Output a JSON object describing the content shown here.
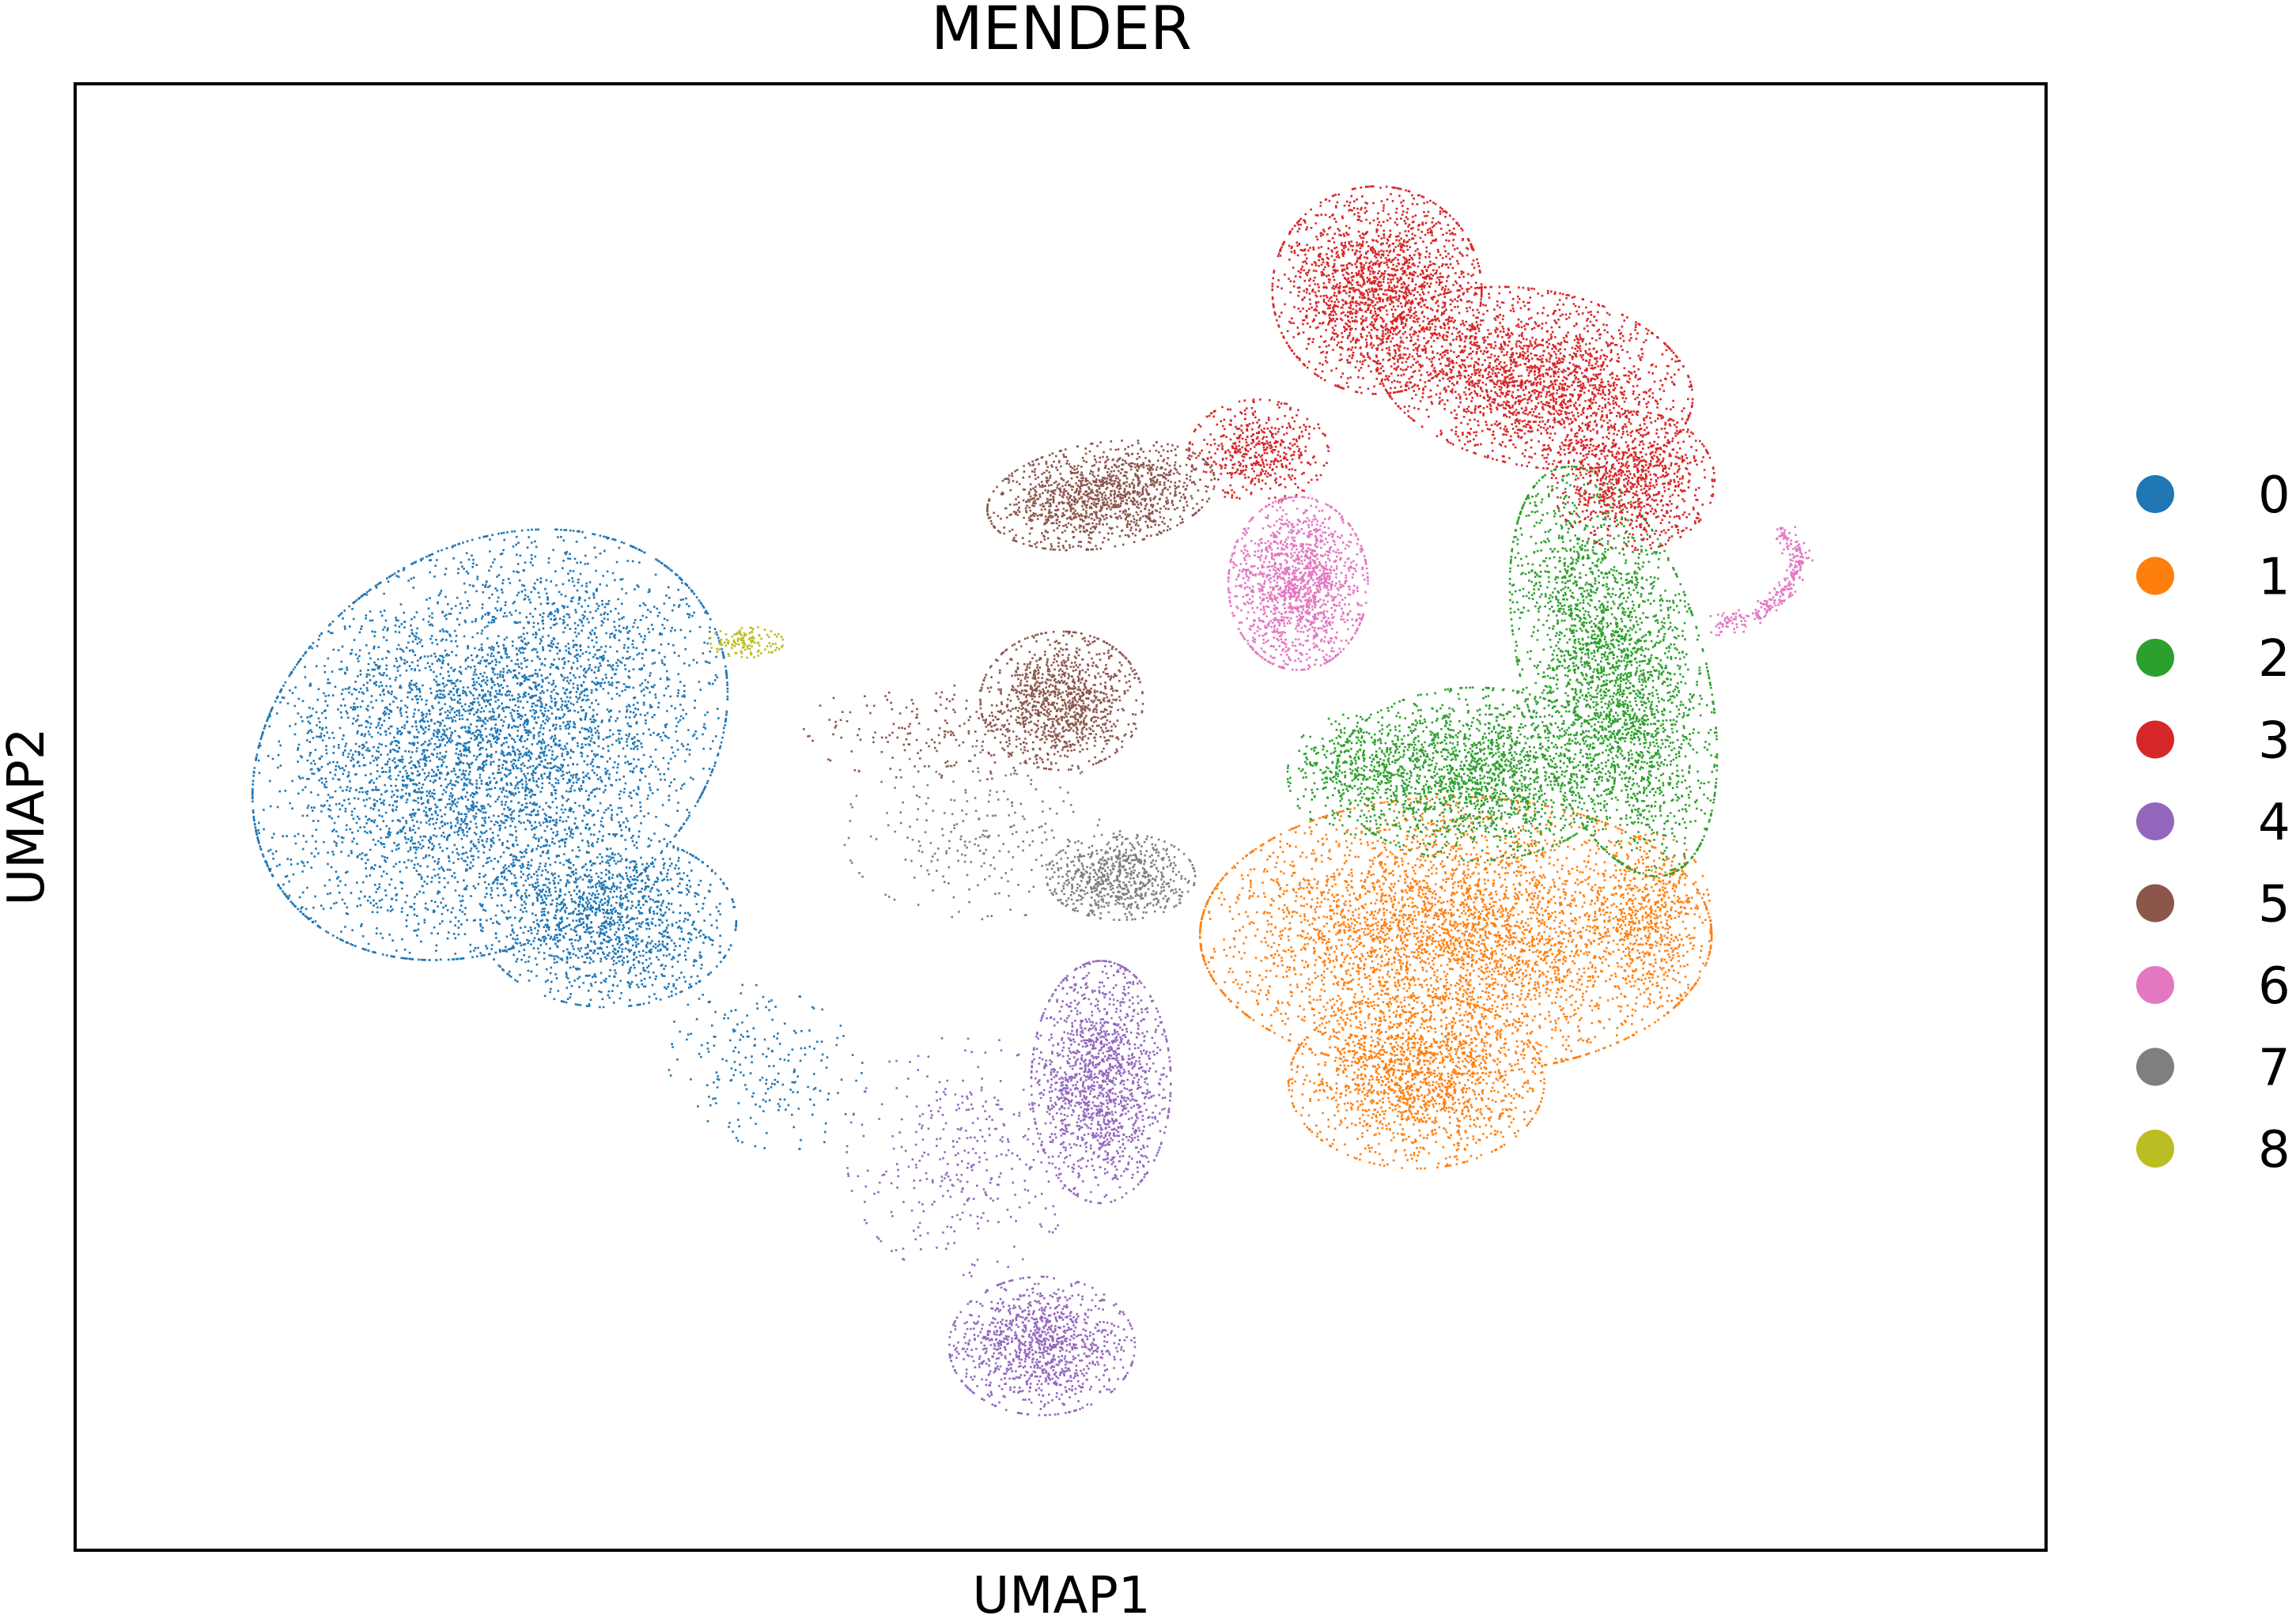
{
  "chart_data": {
    "type": "scatter",
    "title": "MENDER",
    "xlabel": "UMAP1",
    "ylabel": "UMAP2",
    "ticks_visible": false,
    "grid": false,
    "legend_position": "right",
    "xlim": [
      0,
      100
    ],
    "ylim": [
      0,
      100
    ],
    "series": [
      {
        "name": "0",
        "color": "#1f77b4"
      },
      {
        "name": "1",
        "color": "#ff7f0e"
      },
      {
        "name": "2",
        "color": "#2ca02c"
      },
      {
        "name": "3",
        "color": "#d62728"
      },
      {
        "name": "4",
        "color": "#9467bd"
      },
      {
        "name": "5",
        "color": "#8c564b"
      },
      {
        "name": "6",
        "color": "#e377c2"
      },
      {
        "name": "7",
        "color": "#7f7f7f"
      },
      {
        "name": "8",
        "color": "#bcbd22"
      }
    ],
    "clusters": [
      {
        "series": "0",
        "blobs": [
          {
            "cx": 21,
            "cy": 55,
            "rx": 9.5,
            "ry": 13,
            "n": 5200,
            "rot": -25
          },
          {
            "cx": 27,
            "cy": 43,
            "rx": 5.5,
            "ry": 5,
            "n": 1400,
            "rot": 0
          },
          {
            "cx": 35,
            "cy": 33,
            "rx": 4,
            "ry": 5,
            "n": 220,
            "rot": 30
          }
        ]
      },
      {
        "series": "1",
        "blobs": [
          {
            "cx": 70,
            "cy": 42,
            "rx": 11,
            "ry": 8,
            "n": 4200,
            "rot": 0
          },
          {
            "cx": 68,
            "cy": 32,
            "rx": 5.5,
            "ry": 5,
            "n": 1500,
            "rot": 0
          },
          {
            "cx": 80,
            "cy": 43,
            "rx": 2.5,
            "ry": 5,
            "n": 500,
            "rot": 0
          }
        ]
      },
      {
        "series": "2",
        "blobs": [
          {
            "cx": 78,
            "cy": 60,
            "rx": 4,
            "ry": 12,
            "n": 2800,
            "rot": 10
          },
          {
            "cx": 71,
            "cy": 53,
            "rx": 6,
            "ry": 5,
            "n": 1800,
            "rot": 0
          },
          {
            "cx": 65,
            "cy": 53,
            "rx": 3,
            "ry": 3.5,
            "n": 400,
            "rot": 0
          }
        ]
      },
      {
        "series": "3",
        "blobs": [
          {
            "cx": 66,
            "cy": 86,
            "rx": 4.5,
            "ry": 6,
            "n": 1900,
            "rot": 0
          },
          {
            "cx": 74,
            "cy": 80,
            "rx": 7,
            "ry": 5,
            "n": 2200,
            "rot": -20
          },
          {
            "cx": 79,
            "cy": 73,
            "rx": 3.5,
            "ry": 4,
            "n": 900,
            "rot": 0
          },
          {
            "cx": 60,
            "cy": 75,
            "rx": 3,
            "ry": 3,
            "n": 500,
            "rot": 0
          }
        ]
      },
      {
        "series": "4",
        "blobs": [
          {
            "cx": 52,
            "cy": 32,
            "rx": 3,
            "ry": 7,
            "n": 1500,
            "rot": 0
          },
          {
            "cx": 49,
            "cy": 14,
            "rx": 4,
            "ry": 4,
            "n": 1100,
            "rot": 20
          },
          {
            "cx": 45,
            "cy": 27,
            "rx": 5,
            "ry": 7,
            "n": 350,
            "rot": 0
          }
        ]
      },
      {
        "series": "5",
        "blobs": [
          {
            "cx": 52,
            "cy": 72,
            "rx": 5,
            "ry": 3,
            "n": 1300,
            "rot": 15
          },
          {
            "cx": 50,
            "cy": 58,
            "rx": 3.5,
            "ry": 4,
            "n": 1100,
            "rot": 0
          },
          {
            "cx": 44,
            "cy": 56,
            "rx": 6,
            "ry": 3,
            "n": 200,
            "rot": 0
          }
        ]
      },
      {
        "series": "6",
        "blobs": [
          {
            "cx": 62,
            "cy": 66,
            "rx": 3,
            "ry": 5,
            "n": 1500,
            "rot": 0
          }
        ]
      },
      {
        "series": "7",
        "blobs": [
          {
            "cx": 53,
            "cy": 46,
            "rx": 3.2,
            "ry": 2.5,
            "n": 700,
            "rot": 0
          },
          {
            "cx": 46,
            "cy": 49,
            "rx": 6,
            "ry": 5,
            "n": 250,
            "rot": 0
          }
        ]
      },
      {
        "series": "8",
        "blobs": [
          {
            "cx": 34,
            "cy": 62,
            "rx": 1.6,
            "ry": 0.9,
            "n": 130,
            "rot": 0
          }
        ]
      }
    ],
    "curves": [
      {
        "series": "6",
        "points": [
          [
            83,
            63
          ],
          [
            85.5,
            64
          ],
          [
            87,
            66
          ],
          [
            87.5,
            68
          ],
          [
            86.5,
            69.5
          ]
        ],
        "n": 260
      }
    ]
  }
}
